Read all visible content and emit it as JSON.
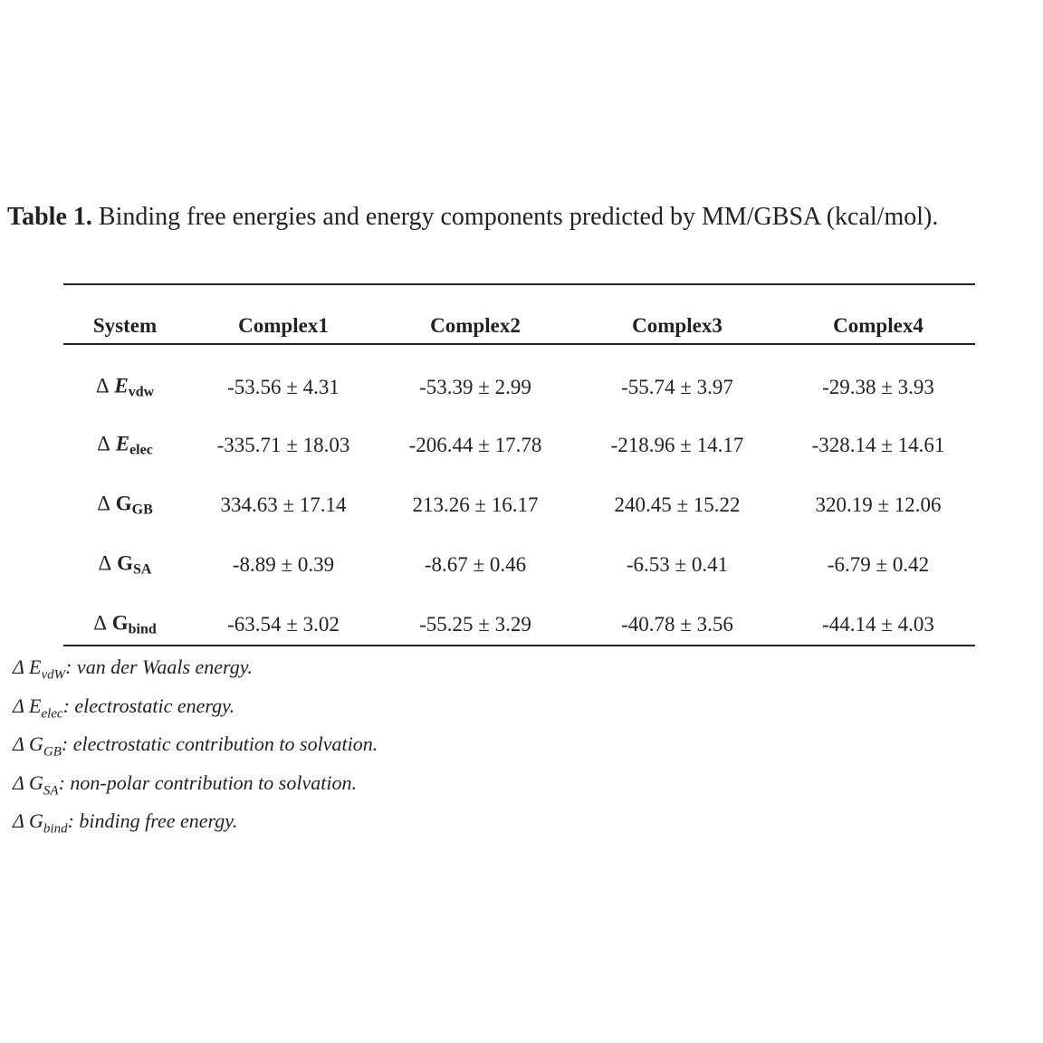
{
  "caption": {
    "label": "Table 1.",
    "text": "Binding free energies and energy components predicted by MM/GBSA (kcal/mol)."
  },
  "table": {
    "header": [
      "System",
      "Complex1",
      "Complex2",
      "Complex3",
      "Complex4"
    ],
    "rows": [
      {
        "label": {
          "delta": "Δ",
          "symbol": "E",
          "sub": "vdw"
        },
        "cells": [
          "-53.56 ± 4.31",
          "-53.39 ± 2.99",
          "-55.74 ± 3.97",
          "-29.38 ± 3.93"
        ]
      },
      {
        "label": {
          "delta": "Δ",
          "symbol": "E",
          "sub": "elec"
        },
        "cells": [
          "-335.71 ± 18.03",
          "-206.44 ± 17.78",
          "-218.96 ± 14.17",
          "-328.14 ± 14.61"
        ]
      },
      {
        "label": {
          "delta": "Δ",
          "symbol": "G",
          "sub": "GB"
        },
        "cells": [
          "334.63 ± 17.14",
          "213.26 ± 16.17",
          "240.45 ± 15.22",
          "320.19 ± 12.06"
        ]
      },
      {
        "label": {
          "delta": "Δ",
          "symbol": "G",
          "sub": "SA"
        },
        "cells": [
          "-8.89 ± 0.39",
          "-8.67 ± 0.46",
          "-6.53 ± 0.41",
          "-6.79 ± 0.42"
        ]
      },
      {
        "label": {
          "delta": "Δ",
          "symbol": "G",
          "sub": "bind"
        },
        "cells": [
          "-63.54 ± 3.02",
          "-55.25 ± 3.29",
          "-40.78 ± 3.56",
          "-44.14 ± 4.03"
        ]
      }
    ]
  },
  "footnotes": [
    {
      "symbol": "Δ E",
      "sub": "vdW",
      "text": ": van der Waals energy."
    },
    {
      "symbol": "Δ E",
      "sub": "elec",
      "text": ": electrostatic energy."
    },
    {
      "symbol": "Δ G",
      "sub": "GB",
      "text": ": electrostatic contribution to solvation."
    },
    {
      "symbol": "Δ G",
      "sub": "SA",
      "text": ": non-polar contribution to solvation."
    },
    {
      "symbol": "Δ G",
      "sub": "bind",
      "text": ": binding free energy."
    }
  ]
}
